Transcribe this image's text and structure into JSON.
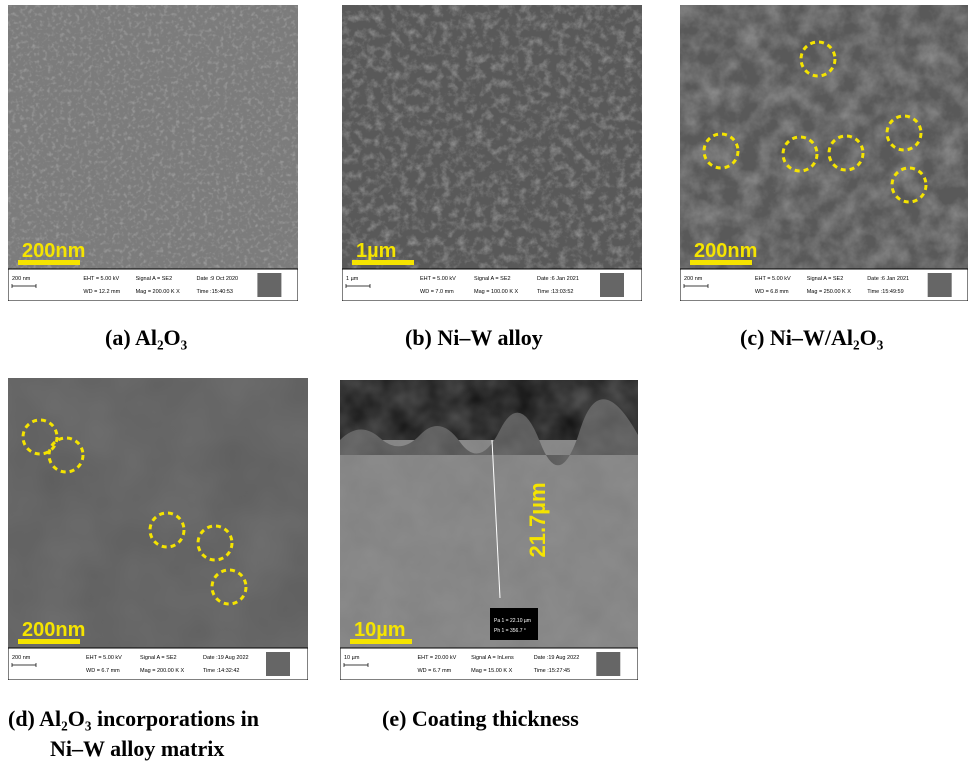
{
  "panels": [
    {
      "caption": [
        "(a) Al₂O₃"
      ],
      "scale_bar": "200nm",
      "info": {
        "scale": "200 nm",
        "eht": "EHT = 5.00 kV",
        "wd": "WD = 12.2 mm",
        "signal": "Signal A = SE2",
        "mag": "Mag = 200.00 K X",
        "date": "Date :9 Oct 2020",
        "time": "Time :15:40:53"
      }
    },
    {
      "caption": [
        "(b) Ni–W alloy"
      ],
      "scale_bar": "1µm",
      "info": {
        "scale": "1 µm",
        "eht": "EHT = 5.00 kV",
        "wd": "WD = 7.0 mm",
        "signal": "Signal A = SE2",
        "mag": "Mag = 100.00 K X",
        "date": "Date :6 Jan 2021",
        "time": "Time :13:03:52"
      }
    },
    {
      "caption": [
        "(c) Ni–W/Al₂O₃"
      ],
      "scale_bar": "200nm",
      "info": {
        "scale": "200 nm",
        "eht": "EHT = 5.00 kV",
        "wd": "WD = 6.8 mm",
        "signal": "Signal A = SE2",
        "mag": "Mag = 250.00 K X",
        "date": "Date :6 Jan 2021",
        "time": "Time :15:49:59"
      }
    },
    {
      "caption": [
        "(d) Al₂O₃ incorporations in",
        "Ni–W alloy matrix"
      ],
      "scale_bar": "200nm",
      "info": {
        "scale": "200 nm",
        "eht": "EHT = 5.00 kV",
        "wd": "WD = 6.7 mm",
        "signal": "Signal A = SE2",
        "mag": "Mag = 200.00 K X",
        "date": "Date :19 Aug 2022",
        "time": "Time :14:32:42"
      }
    },
    {
      "caption": [
        "(e) Coating thickness"
      ],
      "scale_bar": "10µm",
      "thickness": "21.7µm",
      "measure": [
        "Pa 1 = 22.10 µm",
        "Ph 1 = 356.7 °"
      ],
      "info": {
        "scale": "10 µm",
        "eht": "EHT = 20.00 kV",
        "wd": "WD = 6.7 mm",
        "signal": "Signal A = InLens",
        "mag": "Mag = 15.00 K X",
        "date": "Date :19 Aug 2022",
        "time": "Time :15:27:45"
      }
    }
  ]
}
